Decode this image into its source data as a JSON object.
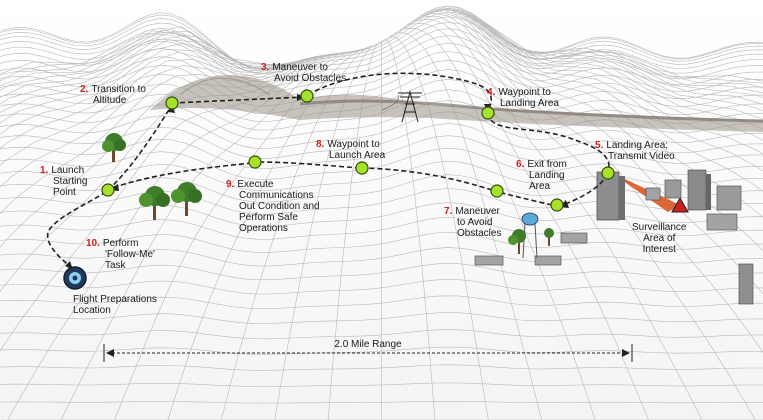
{
  "steps": [
    {
      "num": "1.",
      "lines": [
        "Launch",
        "Starting",
        "Point"
      ]
    },
    {
      "num": "2.",
      "lines": [
        "Transition to",
        "Altitude"
      ]
    },
    {
      "num": "3.",
      "lines": [
        "Maneuver to",
        "Avoid Obstacles"
      ]
    },
    {
      "num": "4.",
      "lines": [
        "Waypoint to",
        "Landing Area"
      ]
    },
    {
      "num": "5.",
      "lines": [
        "Landing Area;",
        "Transmit Video"
      ]
    },
    {
      "num": "6.",
      "lines": [
        "Exit from",
        "Landing",
        "Area"
      ]
    },
    {
      "num": "7.",
      "lines": [
        "Maneuver",
        "to Avoid",
        "Obstacles"
      ]
    },
    {
      "num": "8.",
      "lines": [
        "Waypoint to",
        "Launch Area"
      ]
    },
    {
      "num": "9.",
      "lines": [
        "Execute",
        "Communications",
        "Out Condition and",
        "Perform Safe",
        "Operations"
      ]
    },
    {
      "num": "10.",
      "lines": [
        "Perform",
        "'Follow-Me'",
        "Task"
      ]
    }
  ],
  "surveillance": {
    "lines": [
      "Surveillance",
      "Area of",
      "Interest"
    ]
  },
  "prep": {
    "lines": [
      "Flight Preparations",
      "Location"
    ]
  },
  "range": {
    "label": "2.0 Mile Range"
  },
  "colors": {
    "waypoint": "#a6e22a",
    "step_number": "#cc1f1f",
    "path": "#222222",
    "beam": "#d9561f"
  }
}
